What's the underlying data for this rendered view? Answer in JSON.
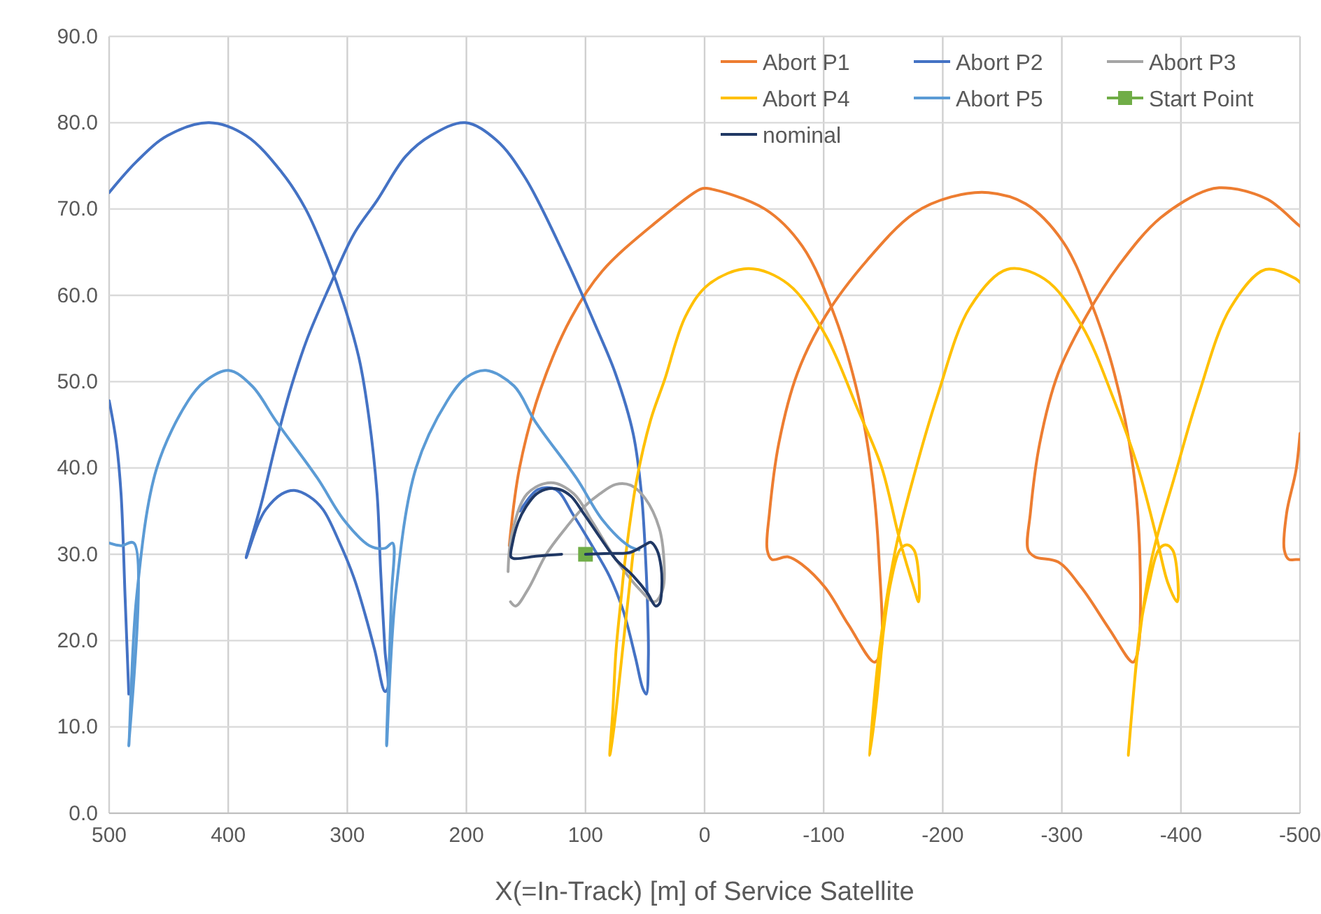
{
  "chart_data": {
    "type": "line",
    "xlabel": "X(=In-Track) [m] of Service Satellite",
    "xlim": [
      500,
      -500
    ],
    "xticks": [
      500,
      400,
      300,
      200,
      100,
      0,
      -100,
      -200,
      -300,
      -400,
      -500
    ],
    "ylim": [
      0,
      90
    ],
    "yticks": [
      {
        "value": 0,
        "label": "0.0"
      },
      {
        "value": 10,
        "label": "10.0"
      },
      {
        "value": 20,
        "label": "20.0"
      },
      {
        "value": 30,
        "label": "30.0"
      },
      {
        "value": 40,
        "label": "40.0"
      },
      {
        "value": 50,
        "label": "50.0"
      },
      {
        "value": 60,
        "label": "60.0"
      },
      {
        "value": 70,
        "label": "70.0"
      },
      {
        "value": 80,
        "label": "80.0"
      },
      {
        "value": 90,
        "label": "90.0"
      }
    ],
    "grid": true,
    "legend": "top right",
    "marker": "none",
    "line_style": "solid",
    "series": [
      {
        "name": "Abort P1",
        "color": "#ed7d31",
        "x": [
          164,
          155.4,
          138,
          112,
          86,
          42.3,
          3.6,
          -1.7,
          -50.6,
          -82,
          -109.3,
          -128.9,
          -140.6,
          -146.5,
          -147.7,
          -142.6,
          -121,
          -101.5,
          -82,
          -70.2,
          -56.5,
          -52.6,
          -54.5,
          -62.4,
          -78,
          -101.5,
          -136.7,
          -175.8,
          -207,
          -238.4,
          -269.7,
          -301,
          -324.5,
          -344,
          -359.7,
          -365.6,
          -363.6,
          -359.7,
          -340,
          -316.7,
          -297,
          -277.5,
          -271.7,
          -273.6,
          -281.5,
          -297,
          -320.6,
          -348,
          -383,
          -422.3,
          -441.8,
          -473,
          -496.6,
          -500,
          null,
          -500,
          -496.6,
          -488.8,
          -486.8,
          -490.7,
          -496.6,
          -500
        ],
        "values": [
          31,
          40,
          49,
          57.4,
          62.8,
          68.3,
          72.3,
          72.4,
          70,
          65.7,
          57.6,
          48.4,
          39.1,
          29.4,
          18.6,
          17.5,
          21.8,
          26.1,
          28.8,
          29.7,
          29.4,
          30.5,
          34.8,
          42.9,
          51,
          57.6,
          64.1,
          69.5,
          71.4,
          71.9,
          70.6,
          66.2,
          59.2,
          51,
          40.2,
          29.4,
          18.6,
          17.5,
          21.3,
          26.1,
          29.1,
          29.7,
          30.5,
          34.8,
          42.9,
          51,
          57.6,
          63.5,
          69,
          72.2,
          72.4,
          71.1,
          68.4,
          68,
          null,
          44,
          39.7,
          34.8,
          30.5,
          29.4,
          29.4,
          29.4
        ]
      },
      {
        "name": "Abort P2",
        "color": "#4472c4",
        "x": [
          155,
          140,
          125,
          110,
          94.5,
          80,
          68.4,
          58,
          52,
          49,
          47.2,
          47.5,
          49,
          53,
          60,
          75,
          90,
          116,
          151,
          175,
          201,
          230,
          251,
          275,
          294.5,
          315,
          333.6,
          348,
          359.7,
          372,
          385,
          375,
          368.4,
          355,
          344.5,
          332,
          320.5,
          307,
          294.5,
          285,
          277,
          268.4,
          266,
          268.4,
          272,
          275,
          282,
          290,
          303,
          316.2,
          335,
          355.3,
          385,
          416,
          451,
          477,
          500,
          null,
          500,
          494,
          490,
          486.6,
          483.5
        ],
        "values": [
          35,
          37.5,
          37.5,
          34.5,
          31,
          27.5,
          23.5,
          18,
          14.5,
          13.8,
          18,
          22,
          28,
          37,
          44,
          51,
          56,
          64.1,
          73.7,
          78,
          80,
          78.5,
          76.1,
          71,
          67.1,
          61,
          55,
          49,
          43,
          36,
          29.6,
          33.5,
          35.2,
          37,
          37.4,
          36.7,
          35.2,
          31.5,
          27.3,
          23,
          18.9,
          14.1,
          14.5,
          18.9,
          28,
          37,
          46,
          52.6,
          59,
          64.1,
          70,
          74.3,
          78.5,
          80,
          78.5,
          75.5,
          71.9,
          null,
          47.8,
          43,
          37,
          25,
          13.8
        ]
      },
      {
        "name": "Abort P3",
        "color": "#a5a5a5",
        "x": [
          165,
          162,
          149,
          129,
          109.7,
          94,
          74.5,
          55,
          42,
          35,
          34,
          38,
          50,
          62,
          74.5,
          88,
          101.9,
          118,
          133,
          148,
          158.6,
          163
        ],
        "values": [
          28,
          32.2,
          37,
          38.3,
          37,
          33.7,
          29.4,
          26,
          24.5,
          26,
          29,
          33,
          36.5,
          38,
          38.1,
          37,
          35.4,
          32.8,
          30,
          26,
          24,
          24.5
        ]
      },
      {
        "name": "Abort P4",
        "color": "#ffc000",
        "x": [
          60,
          68,
          76,
          79.6,
          77,
          74.5,
          70,
          66.7,
          57,
          45.2,
          33.6,
          15.9,
          -3.7,
          -37,
          -70.2,
          -101.5,
          -128.9,
          -148.4,
          -164,
          -175.8,
          -179.7,
          -179.7,
          -175.8,
          -170,
          -164,
          -156.3,
          -150.4,
          -144.5,
          -138.7,
          -146.5,
          -160.2,
          -175.8,
          -195.4,
          -222.8,
          -254,
          -285.4,
          -316.7,
          -344,
          -363.6,
          -379.3,
          -389,
          -396.9,
          -396.9,
          -393,
          -387,
          -381.2,
          -373.4,
          -365.6,
          -359.7,
          -355.8,
          -363.6,
          -375.3,
          -394.9,
          -414.4,
          -441.8,
          -471.2,
          -496.6,
          -500
        ],
        "values": [
          30.2,
          20,
          10,
          6.7,
          12,
          18.6,
          25,
          29.4,
          38.6,
          45.6,
          50.2,
          57.6,
          61.3,
          63.1,
          61.3,
          55.4,
          46.7,
          40.2,
          31.6,
          26.1,
          24.5,
          27.8,
          30.5,
          31.1,
          30.5,
          26.7,
          21.3,
          13.1,
          6.7,
          18.6,
          30.5,
          39.1,
          48.3,
          58.6,
          63,
          61.9,
          56.5,
          47.8,
          40.2,
          32.1,
          26.7,
          24.5,
          27.8,
          30.5,
          31.1,
          30.5,
          26.7,
          21.3,
          13.1,
          6.7,
          18.6,
          29.4,
          39.1,
          48.3,
          58.6,
          63,
          61.9,
          61.5
        ]
      },
      {
        "name": "Abort P5",
        "color": "#5b9bd5",
        "x": [
          55,
          64,
          85.8,
          107.5,
          142.3,
          160,
          183.6,
          200,
          216,
          242.3,
          259.7,
          267,
          263,
          262,
          268.4,
          281.4,
          303,
          325,
          359.7,
          380,
          399.7,
          420,
          433.6,
          460,
          477,
          483.5,
          479.2,
          490,
          500
        ],
        "values": [
          30.5,
          31,
          34,
          38.8,
          45.4,
          49.5,
          51.3,
          50.5,
          47.8,
          40,
          25,
          7.8,
          25,
          31.3,
          30.7,
          31,
          34,
          38.8,
          45.4,
          49.5,
          51.3,
          50,
          47.8,
          40,
          25,
          7.8,
          31.3,
          31,
          31.3
        ]
      },
      {
        "name": "Start Point",
        "color": "#70ad47",
        "type": "scatter",
        "marker": "square",
        "x": [
          100
        ],
        "values": [
          30
        ]
      },
      {
        "name": "nominal",
        "color": "#203864",
        "x": [
          100,
          80,
          62.8,
          50,
          45.2,
          40,
          36.5,
          36,
          37.8,
          41,
          48,
          60,
          74.5,
          88,
          101.9,
          112,
          121.5,
          131,
          141,
          150,
          156.6,
          161,
          162.6,
          160,
          140,
          120
        ],
        "values": [
          30,
          30.1,
          30.2,
          31.1,
          31.4,
          30.5,
          28.5,
          26,
          24.3,
          24,
          25.5,
          27.5,
          29.4,
          32,
          34.8,
          36.7,
          37.5,
          37.6,
          37,
          35.5,
          33.7,
          31.5,
          29.7,
          29.5,
          29.8,
          30
        ]
      }
    ]
  }
}
